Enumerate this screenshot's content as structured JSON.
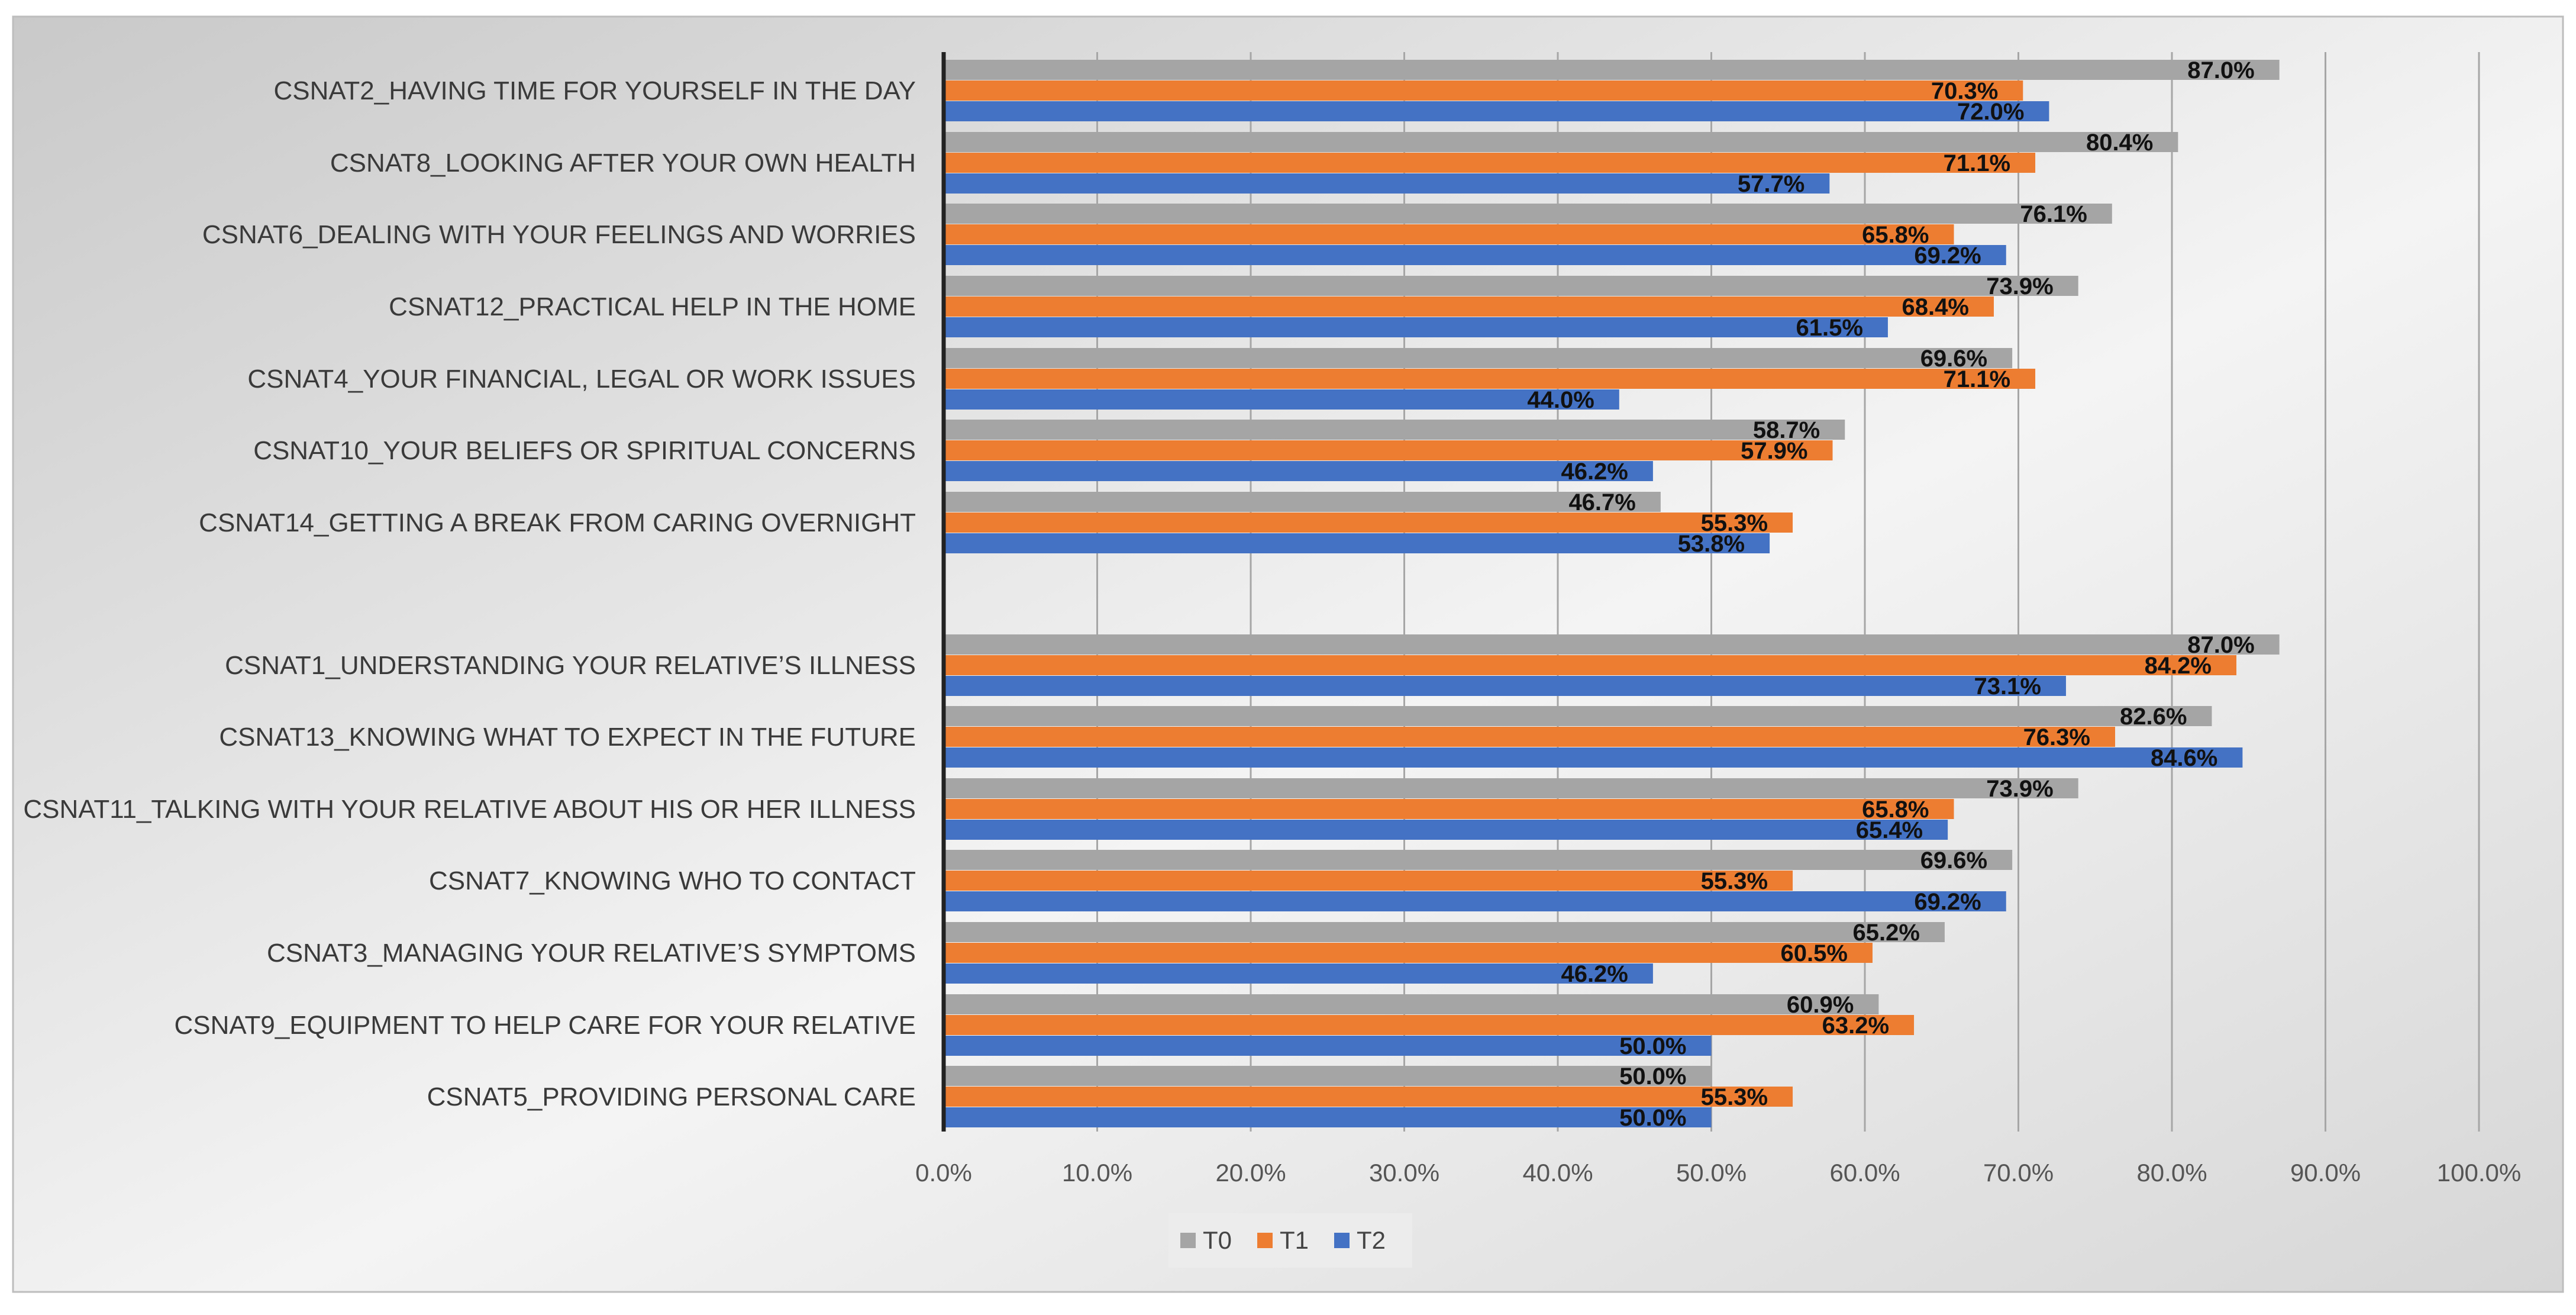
{
  "chart_data": {
    "type": "bar",
    "orientation": "horizontal",
    "title": "",
    "xlabel": "",
    "ylabel": "",
    "xlim": [
      0,
      100
    ],
    "x_ticks": [
      "0.0%",
      "10.0%",
      "20.0%",
      "30.0%",
      "40.0%",
      "50.0%",
      "60.0%",
      "70.0%",
      "80.0%",
      "90.0%",
      "100.0%"
    ],
    "grid": "vertical",
    "legend_position": "bottom",
    "series": [
      {
        "name": "T0",
        "color": "#a5a5a5"
      },
      {
        "name": "T1",
        "color": "#ed7d31"
      },
      {
        "name": "T2",
        "color": "#4472c4"
      }
    ],
    "groups": [
      {
        "categories": [
          {
            "label": "CSNAT2_HAVING TIME FOR YOURSELF IN THE DAY",
            "values": [
              87.0,
              70.3,
              72.0
            ],
            "labels": [
              "87.0%",
              "70.3%",
              "72.0%"
            ]
          },
          {
            "label": "CSNAT8_LOOKING AFTER YOUR OWN HEALTH",
            "values": [
              80.4,
              71.1,
              57.7
            ],
            "labels": [
              "80.4%",
              "71.1%",
              "57.7%"
            ]
          },
          {
            "label": "CSNAT6_DEALING WITH YOUR FEELINGS AND WORRIES",
            "values": [
              76.1,
              65.8,
              69.2
            ],
            "labels": [
              "76.1%",
              "65.8%",
              "69.2%"
            ]
          },
          {
            "label": "CSNAT12_PRACTICAL HELP IN THE HOME",
            "values": [
              73.9,
              68.4,
              61.5
            ],
            "labels": [
              "73.9%",
              "68.4%",
              "61.5%"
            ]
          },
          {
            "label": "CSNAT4_YOUR FINANCIAL, LEGAL OR WORK ISSUES",
            "values": [
              69.6,
              71.1,
              44.0
            ],
            "labels": [
              "69.6%",
              "71.1%",
              "44.0%"
            ]
          },
          {
            "label": "CSNAT10_YOUR BELIEFS OR SPIRITUAL CONCERNS",
            "values": [
              58.7,
              57.9,
              46.2
            ],
            "labels": [
              "58.7%",
              "57.9%",
              "46.2%"
            ]
          },
          {
            "label": "CSNAT14_GETTING A BREAK FROM CARING OVERNIGHT",
            "values": [
              46.7,
              55.3,
              53.8
            ],
            "labels": [
              "46.7%",
              "55.3%",
              "53.8%"
            ]
          }
        ]
      },
      {
        "categories": [
          {
            "label": "CSNAT1_UNDERSTANDING YOUR RELATIVE’S ILLNESS",
            "values": [
              87.0,
              84.2,
              73.1
            ],
            "labels": [
              "87.0%",
              "84.2%",
              "73.1%"
            ]
          },
          {
            "label": "CSNAT13_KNOWING WHAT TO EXPECT IN THE FUTURE",
            "values": [
              82.6,
              76.3,
              84.6
            ],
            "labels": [
              "82.6%",
              "76.3%",
              "84.6%"
            ]
          },
          {
            "label": "CSNAT11_TALKING WITH YOUR RELATIVE ABOUT HIS OR HER ILLNESS",
            "values": [
              73.9,
              65.8,
              65.4
            ],
            "labels": [
              "73.9%",
              "65.8%",
              "65.4%"
            ]
          },
          {
            "label": "CSNAT7_KNOWING WHO TO CONTACT",
            "values": [
              69.6,
              55.3,
              69.2
            ],
            "labels": [
              "69.6%",
              "55.3%",
              "69.2%"
            ]
          },
          {
            "label": "CSNAT3_MANAGING YOUR RELATIVE’S SYMPTOMS",
            "values": [
              65.2,
              60.5,
              46.2
            ],
            "labels": [
              "65.2%",
              "60.5%",
              "46.2%"
            ]
          },
          {
            "label": "CSNAT9_EQUIPMENT TO HELP CARE FOR YOUR RELATIVE",
            "values": [
              60.9,
              63.2,
              50.0
            ],
            "labels": [
              "60.9%",
              "63.2%",
              "50.0%"
            ]
          },
          {
            "label": "CSNAT5_PROVIDING PERSONAL CARE",
            "values": [
              50.0,
              55.3,
              50.0
            ],
            "labels": [
              "50.0%",
              "55.3%",
              "50.0%"
            ]
          }
        ]
      }
    ]
  }
}
